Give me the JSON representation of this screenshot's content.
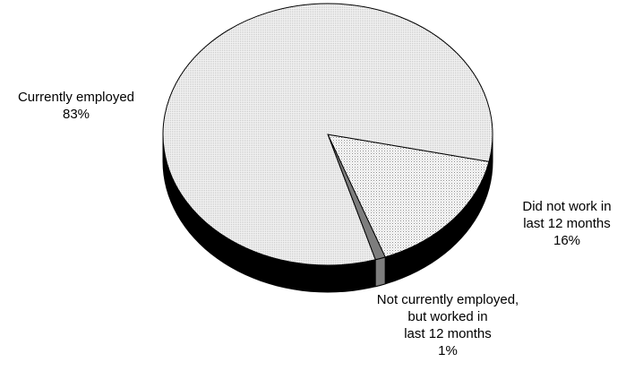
{
  "chart_data": {
    "type": "pie",
    "style": "3d",
    "start_angle_deg": 12,
    "direction": "clockwise",
    "slices": [
      {
        "label_lines": [
          "Did not work in",
          "last 12 months"
        ],
        "value": 16,
        "value_label": "16%",
        "fill": "pattern-light-dots",
        "color": "#cfcfcf"
      },
      {
        "label_lines": [
          "Not currently employed,",
          "but worked in",
          "last 12 months"
        ],
        "value": 1,
        "value_label": "1%",
        "fill": "solid",
        "color": "#7d7d7d"
      },
      {
        "label_lines": [
          "Currently employed"
        ],
        "value": 83,
        "value_label": "83%",
        "fill": "pattern-fine-dots",
        "color": "#e4e4e4"
      }
    ],
    "side_color": "#000000",
    "edge_color": "#000000",
    "legend": "none"
  }
}
